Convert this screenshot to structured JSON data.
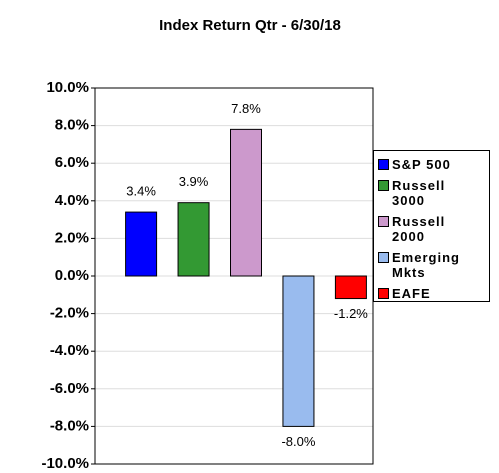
{
  "chart_data": {
    "type": "bar",
    "title": "Index Return Qtr - 6/30/18",
    "categories": [
      null
    ],
    "series": [
      {
        "name": "S&P 500",
        "color": "#0000ff",
        "values": [
          3.4
        ],
        "value_labels": [
          "3.4%"
        ]
      },
      {
        "name": "Russell 3000",
        "color": "#339933",
        "values": [
          3.9
        ],
        "value_labels": [
          "3.9%"
        ]
      },
      {
        "name": "Russell 2000",
        "color": "#cc99cc",
        "values": [
          7.8
        ],
        "value_labels": [
          "7.8%"
        ]
      },
      {
        "name": "Emerging Mkts",
        "color": "#99bbee",
        "values": [
          -8.0
        ],
        "value_labels": [
          "-8.0%"
        ]
      },
      {
        "name": "EAFE",
        "color": "#ff0000",
        "values": [
          -1.2
        ],
        "value_labels": [
          "-1.2%"
        ]
      }
    ],
    "ylim": [
      -10,
      10
    ],
    "yticks": [
      {
        "value": -10,
        "label": "-10.0%"
      },
      {
        "value": -8,
        "label": "-8.0%"
      },
      {
        "value": -6,
        "label": "-6.0%"
      },
      {
        "value": -4,
        "label": "-4.0%"
      },
      {
        "value": -2,
        "label": "-2.0%"
      },
      {
        "value": 0,
        "label": "0.0%"
      },
      {
        "value": 2,
        "label": "2.0%"
      },
      {
        "value": 4,
        "label": "4.0%"
      },
      {
        "value": 6,
        "label": "6.0%"
      },
      {
        "value": 8,
        "label": "8.0%"
      },
      {
        "value": 10,
        "label": "10.0%"
      }
    ],
    "grid": true,
    "legend": "right"
  }
}
